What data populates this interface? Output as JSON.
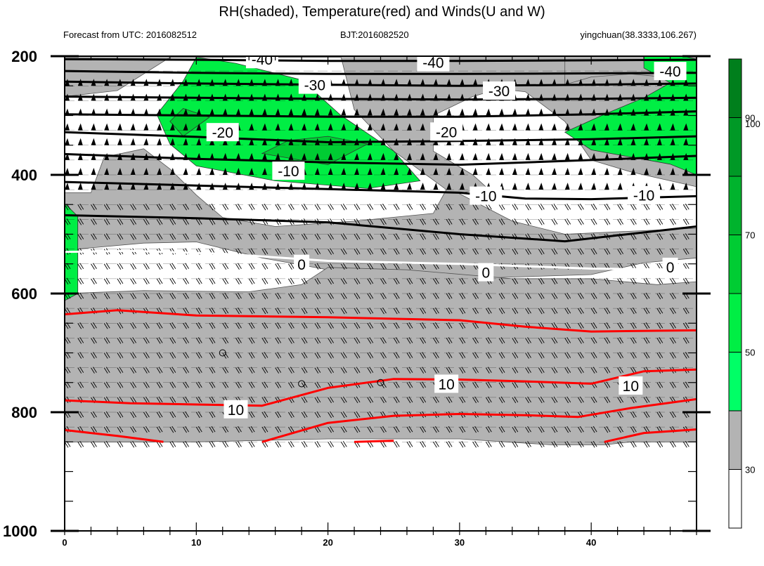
{
  "chart_data": {
    "type": "contour",
    "title": "RH(shaded), Temperature(red) and Winds(U and W)",
    "subtitle_left": "Forecast from UTC: 2016082512",
    "subtitle_center": "BJT:2016082520",
    "subtitle_right": "yingchuan(38.3333,106.267)",
    "x_ticks": [
      "0",
      "10",
      "20",
      "30",
      "40"
    ],
    "x_tick_values": [
      0,
      10,
      20,
      30,
      40
    ],
    "xlim": [
      0,
      48
    ],
    "y_ticks": [
      "200",
      "400",
      "600",
      "800",
      "1000"
    ],
    "y_tick_values": [
      200,
      400,
      600,
      800,
      1000
    ],
    "ylim": [
      200,
      1000
    ],
    "colorbar": {
      "labels": [
        "30",
        "50",
        "70",
        "90",
        "100"
      ],
      "levels": [
        30,
        40,
        50,
        60,
        70,
        80,
        90,
        100
      ],
      "colors": [
        "#ffffff",
        "#b3b3b3",
        "#00ff66",
        "#00ee44",
        "#00cc33",
        "#00b32d",
        "#009926",
        "#007f1c"
      ]
    },
    "temperature_labels": [
      "-40",
      "-40",
      "-40",
      "-30",
      "-30",
      "-20",
      "-20",
      "-10",
      "-10",
      "-10",
      "0",
      "0",
      "0",
      "10",
      "10",
      "10"
    ],
    "isotherms": [
      {
        "label": "-40",
        "color": "#000000",
        "points": [
          [
            0,
            205
          ],
          [
            10,
            206
          ],
          [
            20,
            208
          ],
          [
            30,
            208
          ],
          [
            40,
            207
          ],
          [
            48,
            206
          ]
        ]
      },
      {
        "label": "-40",
        "color": "#000000",
        "points": [
          [
            0,
            225
          ],
          [
            10,
            228
          ],
          [
            20,
            230
          ],
          [
            30,
            230
          ],
          [
            40,
            229
          ],
          [
            48,
            228
          ]
        ]
      },
      {
        "label": "-40",
        "color": "#000000",
        "points": [
          [
            0,
            243
          ],
          [
            10,
            246
          ],
          [
            20,
            248
          ],
          [
            30,
            250
          ],
          [
            40,
            248
          ],
          [
            48,
            246
          ]
        ]
      },
      {
        "label": "-30",
        "color": "#000000",
        "points": [
          [
            0,
            268
          ],
          [
            10,
            270
          ],
          [
            20,
            272
          ],
          [
            30,
            273
          ],
          [
            40,
            272
          ],
          [
            48,
            270
          ]
        ]
      },
      {
        "label": "-30",
        "color": "#000000",
        "points": [
          [
            0,
            298
          ],
          [
            10,
            300
          ],
          [
            20,
            302
          ],
          [
            30,
            302
          ],
          [
            40,
            298
          ],
          [
            48,
            293
          ]
        ]
      },
      {
        "label": "-20",
        "color": "#000000",
        "points": [
          [
            0,
            328
          ],
          [
            10,
            336
          ],
          [
            20,
            345
          ],
          [
            30,
            343
          ],
          [
            40,
            340
          ],
          [
            48,
            335
          ]
        ]
      },
      {
        "label": "-20",
        "color": "#000000",
        "points": [
          [
            0,
            365
          ],
          [
            10,
            373
          ],
          [
            20,
            379
          ],
          [
            30,
            383
          ],
          [
            40,
            375
          ],
          [
            48,
            368
          ]
        ]
      },
      {
        "label": "-10",
        "color": "#000000",
        "points": [
          [
            0,
            412
          ],
          [
            10,
            418
          ],
          [
            20,
            424
          ],
          [
            30,
            430
          ],
          [
            35,
            440
          ],
          [
            40,
            441
          ],
          [
            48,
            436
          ]
        ]
      },
      {
        "label": "-10",
        "color": "#000000",
        "points": [
          [
            0,
            468
          ],
          [
            10,
            473
          ],
          [
            20,
            480
          ],
          [
            30,
            500
          ],
          [
            38,
            512
          ],
          [
            44,
            497
          ],
          [
            48,
            487
          ]
        ]
      },
      {
        "label": "0",
        "color": "#ffffff",
        "points": [
          [
            0,
            530
          ],
          [
            5,
            528
          ],
          [
            12,
            533
          ],
          [
            20,
            545
          ],
          [
            30,
            550
          ],
          [
            40,
            558
          ],
          [
            48,
            560
          ]
        ]
      },
      {
        "label": "10",
        "color": "#ff0000",
        "points": [
          [
            0,
            635
          ],
          [
            4,
            628
          ],
          [
            10,
            637
          ],
          [
            20,
            640
          ],
          [
            30,
            645
          ],
          [
            35,
            656
          ],
          [
            40,
            664
          ],
          [
            48,
            662
          ]
        ]
      },
      {
        "label": "10",
        "color": "#ff0000",
        "points": [
          [
            0,
            780
          ],
          [
            5,
            785
          ],
          [
            10,
            787
          ],
          [
            15,
            789
          ],
          [
            20,
            759
          ],
          [
            25,
            744
          ],
          [
            30,
            745
          ],
          [
            35,
            748
          ],
          [
            40,
            752
          ],
          [
            44,
            731
          ],
          [
            48,
            728
          ]
        ]
      },
      {
        "label": "10",
        "color": "#ff0000",
        "points": [
          [
            0,
            830
          ],
          [
            4,
            840
          ],
          [
            7.5,
            850
          ]
        ]
      },
      {
        "label": "10",
        "color": "#ff0000",
        "points": [
          [
            15,
            850
          ],
          [
            20,
            818
          ],
          [
            25,
            806
          ],
          [
            30,
            803
          ],
          [
            35,
            805
          ],
          [
            39,
            808
          ],
          [
            43,
            793
          ],
          [
            48,
            778
          ]
        ]
      },
      {
        "label": "10",
        "color": "#ff0000",
        "points": [
          [
            22,
            850
          ],
          [
            25,
            848
          ]
        ]
      },
      {
        "label": "10",
        "color": "#ff0000",
        "points": [
          [
            41,
            850
          ],
          [
            44,
            835
          ],
          [
            48,
            829
          ]
        ]
      }
    ],
    "rh_gray_regions": [
      [
        [
          0,
          430
        ],
        [
          2,
          430
        ],
        [
          3,
          370
        ],
        [
          6,
          356
        ],
        [
          8,
          390
        ],
        [
          10,
          434
        ],
        [
          12,
          472
        ],
        [
          16,
          487
        ],
        [
          22,
          478
        ],
        [
          28,
          465
        ],
        [
          29,
          425
        ],
        [
          25,
          360
        ],
        [
          22,
          290
        ],
        [
          21,
          202
        ],
        [
          8,
          202
        ],
        [
          4,
          258
        ],
        [
          0,
          268
        ],
        [
          0,
          198
        ],
        [
          48,
          198
        ],
        [
          48,
          240
        ],
        [
          43,
          230
        ],
        [
          40,
          235
        ],
        [
          38,
          248
        ],
        [
          38,
          200
        ],
        [
          48,
          200
        ],
        [
          48,
          420
        ],
        [
          43,
          395
        ],
        [
          40,
          375
        ],
        [
          38,
          310
        ],
        [
          35,
          260
        ],
        [
          33,
          255
        ],
        [
          31,
          268
        ],
        [
          28,
          300
        ],
        [
          28,
          360
        ],
        [
          31,
          400
        ],
        [
          32,
          420
        ],
        [
          30,
          432
        ],
        [
          34,
          478
        ],
        [
          38,
          500
        ],
        [
          48,
          490
        ],
        [
          48,
          540
        ],
        [
          44,
          548
        ],
        [
          40,
          568
        ],
        [
          30,
          575
        ],
        [
          20,
          560
        ],
        [
          15,
          540
        ],
        [
          10,
          513
        ],
        [
          6,
          515
        ],
        [
          1,
          525
        ],
        [
          0,
          528
        ]
      ],
      [
        [
          0,
          600
        ],
        [
          6,
          595
        ],
        [
          14,
          597
        ],
        [
          18,
          585
        ],
        [
          20,
          556
        ],
        [
          26,
          560
        ],
        [
          34,
          575
        ],
        [
          40,
          575
        ],
        [
          45,
          585
        ],
        [
          48,
          580
        ],
        [
          48,
          850
        ],
        [
          43,
          850
        ],
        [
          41,
          855
        ],
        [
          37,
          855
        ],
        [
          30,
          845
        ],
        [
          20,
          845
        ],
        [
          10,
          850
        ],
        [
          0,
          850
        ]
      ]
    ],
    "rh_green_regions": [
      [
        [
          10,
          202
        ],
        [
          11,
          205
        ],
        [
          13,
          212
        ],
        [
          18,
          240
        ],
        [
          21,
          300
        ],
        [
          25,
          360
        ],
        [
          27,
          410
        ],
        [
          23,
          423
        ],
        [
          16,
          410
        ],
        [
          10,
          385
        ],
        [
          8,
          348
        ],
        [
          7,
          298
        ],
        [
          8,
          270
        ],
        [
          9,
          242
        ]
      ],
      [
        [
          47,
          200
        ],
        [
          48,
          205
        ],
        [
          48,
          400
        ],
        [
          46,
          382
        ],
        [
          40,
          358
        ],
        [
          38,
          328
        ],
        [
          41,
          298
        ],
        [
          44,
          270
        ],
        [
          46,
          245
        ],
        [
          44,
          220
        ],
        [
          44,
          200
        ]
      ],
      [
        [
          0,
          448
        ],
        [
          1,
          470
        ],
        [
          1,
          600
        ],
        [
          0,
          612
        ]
      ]
    ],
    "rh_dark_green_regions": [
      [
        [
          9,
          288
        ],
        [
          11,
          303
        ],
        [
          9,
          335
        ],
        [
          8,
          310
        ]
      ],
      [
        [
          17,
          342
        ],
        [
          20,
          335
        ],
        [
          23,
          348
        ],
        [
          20,
          383
        ],
        [
          15,
          364
        ]
      ]
    ],
    "closed_contours": [
      [
        12,
        700
      ],
      [
        18,
        752
      ],
      [
        24,
        750
      ]
    ],
    "wind_barbs": true
  }
}
